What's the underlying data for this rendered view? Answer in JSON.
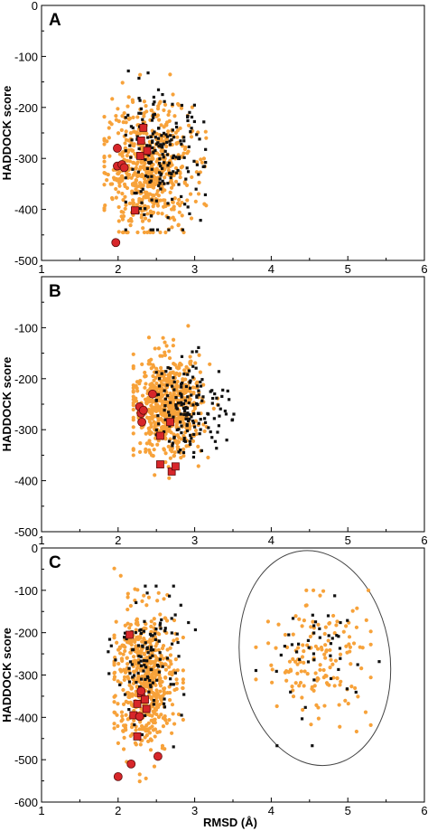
{
  "figure": {
    "xlabel": "RMSD (Å)",
    "ylabel": "HADDOCK score"
  },
  "colors": {
    "orange": "#f7a23a",
    "black": "#111111",
    "red": "#d7262a",
    "frame": "#000000",
    "ellipse": "#444444"
  },
  "chart_data": [
    {
      "type": "scatter",
      "panel": "A",
      "title": "",
      "xlabel": "",
      "ylabel": "HADDOCK score",
      "xlim": [
        1,
        6
      ],
      "ylim": [
        -500,
        0
      ],
      "xticks": [
        1,
        2,
        3,
        4,
        5,
        6
      ],
      "yticks": [
        0,
        -100,
        -200,
        -300,
        -400,
        -500
      ],
      "ytick_labels": [
        "0",
        "-100",
        "-200",
        "-300",
        "-400",
        "-500"
      ],
      "cluster_orange": {
        "center": [
          2.4,
          -320
        ],
        "spread": [
          0.28,
          62
        ],
        "count": 620,
        "xmin": 1.82,
        "xmax": 3.15,
        "ymin": -445,
        "ymax": -20
      },
      "cluster_black": {
        "center": [
          2.55,
          -300
        ],
        "spread": [
          0.28,
          60
        ],
        "count": 190,
        "xmin": 2.1,
        "xmax": 3.4,
        "ymin": -440,
        "ymax": -30
      },
      "red_circles": [
        {
          "x": 1.97,
          "y": -465
        },
        {
          "x": 1.99,
          "y": -280
        },
        {
          "x": 1.99,
          "y": -315
        },
        {
          "x": 2.05,
          "y": -312
        },
        {
          "x": 2.08,
          "y": -318
        }
      ],
      "red_squares": [
        {
          "x": 2.22,
          "y": -402
        },
        {
          "x": 2.29,
          "y": -295
        },
        {
          "x": 2.3,
          "y": -265
        },
        {
          "x": 2.33,
          "y": -240
        },
        {
          "x": 2.38,
          "y": -285
        }
      ]
    },
    {
      "type": "scatter",
      "panel": "B",
      "title": "",
      "xlabel": "",
      "ylabel": "HADDOCK score",
      "xlim": [
        1,
        6
      ],
      "ylim": [
        -500,
        0
      ],
      "xticks": [
        1,
        2,
        3,
        4,
        5,
        6
      ],
      "yticks": [
        -100,
        -200,
        -300,
        -400,
        -500
      ],
      "ytick_labels": [
        "-100",
        "-200",
        "-300",
        "-400",
        "-500"
      ],
      "cluster_orange": {
        "center": [
          2.65,
          -255
        ],
        "spread": [
          0.22,
          48
        ],
        "count": 650,
        "xmin": 2.2,
        "xmax": 3.3,
        "ymin": -395,
        "ymax": -75
      },
      "cluster_black": {
        "center": [
          2.95,
          -255
        ],
        "spread": [
          0.25,
          45
        ],
        "count": 170,
        "xmin": 2.5,
        "xmax": 3.65,
        "ymin": -420,
        "ymax": -110
      },
      "red_circles": [
        {
          "x": 2.28,
          "y": -255
        },
        {
          "x": 2.3,
          "y": -268
        },
        {
          "x": 2.31,
          "y": -285
        },
        {
          "x": 2.45,
          "y": -230
        },
        {
          "x": 2.33,
          "y": -262
        }
      ],
      "red_squares": [
        {
          "x": 2.55,
          "y": -312
        },
        {
          "x": 2.55,
          "y": -368
        },
        {
          "x": 2.68,
          "y": -285
        },
        {
          "x": 2.7,
          "y": -382
        },
        {
          "x": 2.75,
          "y": -372
        }
      ]
    },
    {
      "type": "scatter",
      "panel": "C",
      "title": "",
      "xlabel": "RMSD (Å)",
      "ylabel": "HADDOCK score",
      "xlim": [
        1,
        6
      ],
      "ylim": [
        -600,
        0
      ],
      "xticks": [
        1,
        2,
        3,
        4,
        5,
        6
      ],
      "yticks": [
        0,
        -100,
        -200,
        -300,
        -400,
        -500,
        -600
      ],
      "ytick_labels": [
        "0",
        "-100",
        "-200",
        "-300",
        "-400",
        "-500",
        "-600"
      ],
      "cluster_orange": {
        "center": [
          2.35,
          -310
        ],
        "spread": [
          0.2,
          82
        ],
        "count": 560,
        "xmin": 1.95,
        "xmax": 2.85,
        "ymin": -560,
        "ymax": -25
      },
      "cluster_black": {
        "center": [
          2.4,
          -260
        ],
        "spread": [
          0.22,
          75
        ],
        "count": 120,
        "xmin": 1.8,
        "xmax": 3.3,
        "ymin": -480,
        "ymax": -90
      },
      "cluster_far_orange": {
        "center": [
          4.6,
          -260
        ],
        "spread": [
          0.35,
          70
        ],
        "count": 150,
        "xmin": 3.8,
        "xmax": 5.3,
        "ymin": -470,
        "ymax": -100
      },
      "cluster_far_black": {
        "center": [
          4.6,
          -260
        ],
        "spread": [
          0.4,
          75
        ],
        "count": 45,
        "xmin": 3.8,
        "xmax": 5.45,
        "ymin": -470,
        "ymax": -80
      },
      "red_circles": [
        {
          "x": 2.0,
          "y": -540
        },
        {
          "x": 2.17,
          "y": -510
        },
        {
          "x": 2.28,
          "y": -398
        },
        {
          "x": 2.3,
          "y": -338
        },
        {
          "x": 2.52,
          "y": -492
        }
      ],
      "red_squares": [
        {
          "x": 2.15,
          "y": -205
        },
        {
          "x": 2.2,
          "y": -395
        },
        {
          "x": 2.25,
          "y": -368
        },
        {
          "x": 2.25,
          "y": -445
        },
        {
          "x": 2.3,
          "y": -343
        },
        {
          "x": 2.35,
          "y": -358
        },
        {
          "x": 2.37,
          "y": -380
        }
      ],
      "ellipse": {
        "cx": 4.57,
        "cy": -260,
        "rx": 0.98,
        "ry": 255
      }
    }
  ]
}
